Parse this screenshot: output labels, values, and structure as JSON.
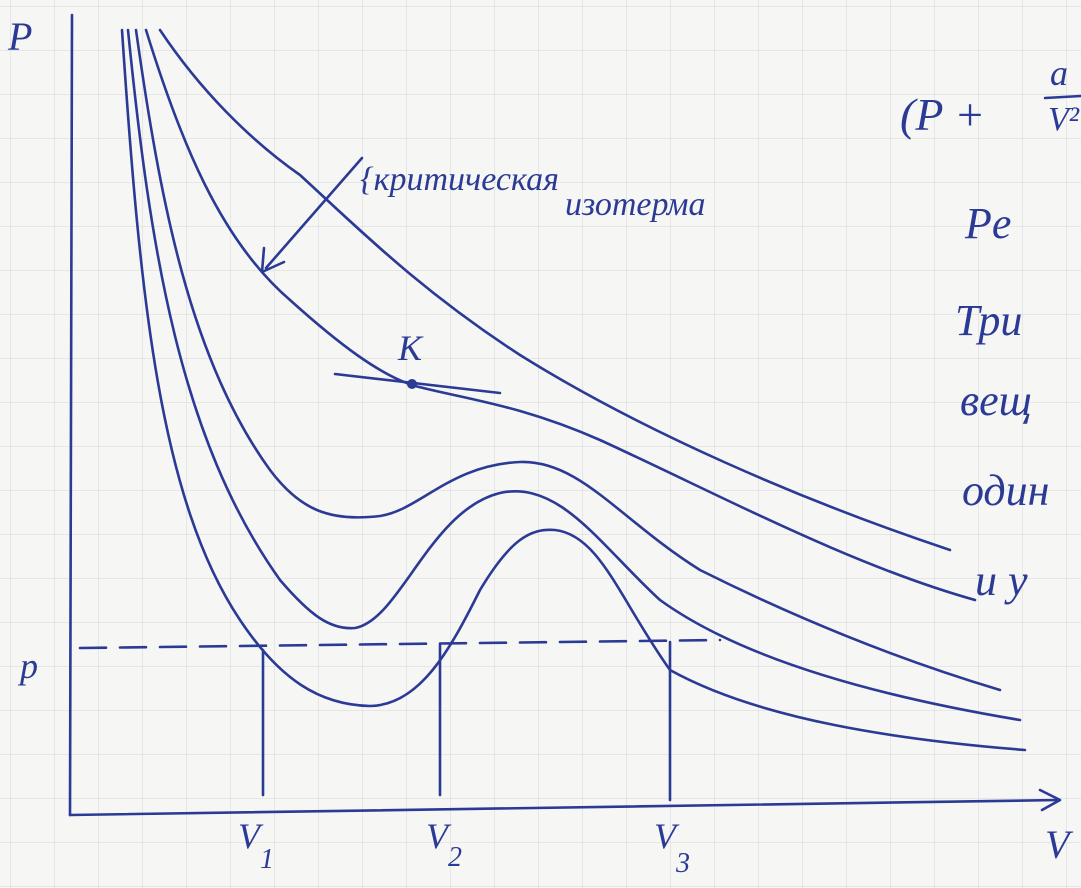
{
  "axes": {
    "y_label": "P",
    "x_label": "V",
    "p_label": "p"
  },
  "volumes": [
    {
      "main": "V",
      "sub": "1"
    },
    {
      "main": "V",
      "sub": "2"
    },
    {
      "main": "V",
      "sub": "3"
    }
  ],
  "point_label": "K",
  "annotation": [
    "{критическая",
    "изотерма"
  ],
  "equation": {
    "left": "(P +",
    "numerator": "a",
    "denominator": "V²"
  },
  "text_lines": [
    "Pe",
    "Три",
    "вещ",
    "один",
    "и у"
  ]
}
